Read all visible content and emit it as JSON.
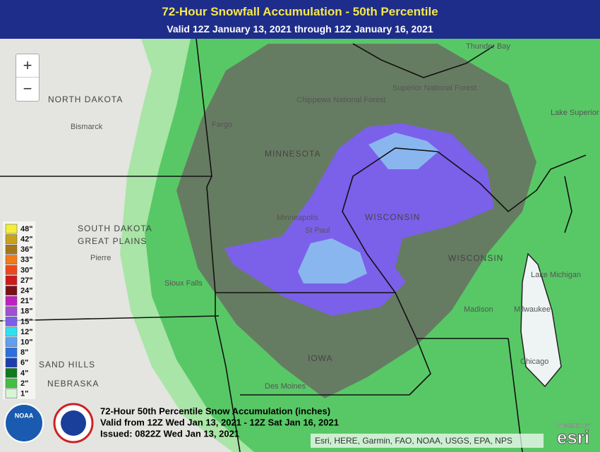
{
  "header": {
    "title": "72-Hour Snowfall Accumulation - 50th Percentile",
    "subtitle": "Valid 12Z January 13, 2021 through 12Z January 16, 2021"
  },
  "controls": {
    "zoom_in": "+",
    "zoom_out": "−"
  },
  "places": [
    "NORTH DAKOTA",
    "Bismarck",
    "Fargo",
    "MINNESOTA",
    "Chippewa National Forest",
    "Superior National Forest",
    "Thunder Bay",
    "Lake Superior",
    "Minneapolis",
    "St Paul",
    "WISCONSIN",
    "WISCONSIN",
    "SOUTH DAKOTA",
    "GREAT PLAINS",
    "Pierre",
    "Sioux Falls",
    "IOWA",
    "Des Moines",
    "Madison",
    "Milwaukee",
    "Chicago",
    "Lake Michigan",
    "SAND HILLS",
    "NEBRASKA"
  ],
  "legend": [
    {
      "label": "48\"",
      "color": "#f2ee3a"
    },
    {
      "label": "42\"",
      "color": "#c9a21a"
    },
    {
      "label": "36\"",
      "color": "#a8761a"
    },
    {
      "label": "33\"",
      "color": "#f27a1a"
    },
    {
      "label": "30\"",
      "color": "#f0461a"
    },
    {
      "label": "27\"",
      "color": "#d0191a"
    },
    {
      "label": "24\"",
      "color": "#7a101a"
    },
    {
      "label": "21\"",
      "color": "#c020c0"
    },
    {
      "label": "18\"",
      "color": "#a050d0"
    },
    {
      "label": "15\"",
      "color": "#7b60ea"
    },
    {
      "label": "12\"",
      "color": "#30e0f0"
    },
    {
      "label": "10\"",
      "color": "#60a0ee"
    },
    {
      "label": "8\"",
      "color": "#2a70e0"
    },
    {
      "label": "6\"",
      "color": "#1a40b0"
    },
    {
      "label": "4\"",
      "color": "#107a20"
    },
    {
      "label": "2\"",
      "color": "#40c040"
    },
    {
      "label": "1\"",
      "color": "#d8f5d8"
    }
  ],
  "info": [
    "72-Hour 50th Percentile Snow Accumulation (inches)",
    "Valid from 12Z Wed Jan 13, 2021 - 12Z Sat Jan 16, 2021",
    "Issued: 0822Z Wed Jan 13, 2021"
  ],
  "attribution": "Esri, HERE, Garmin, FAO, NOAA, USGS, EPA, NPS",
  "logos": {
    "noaa": "NOAA",
    "esri": "esri",
    "powered": "POWERED BY"
  }
}
